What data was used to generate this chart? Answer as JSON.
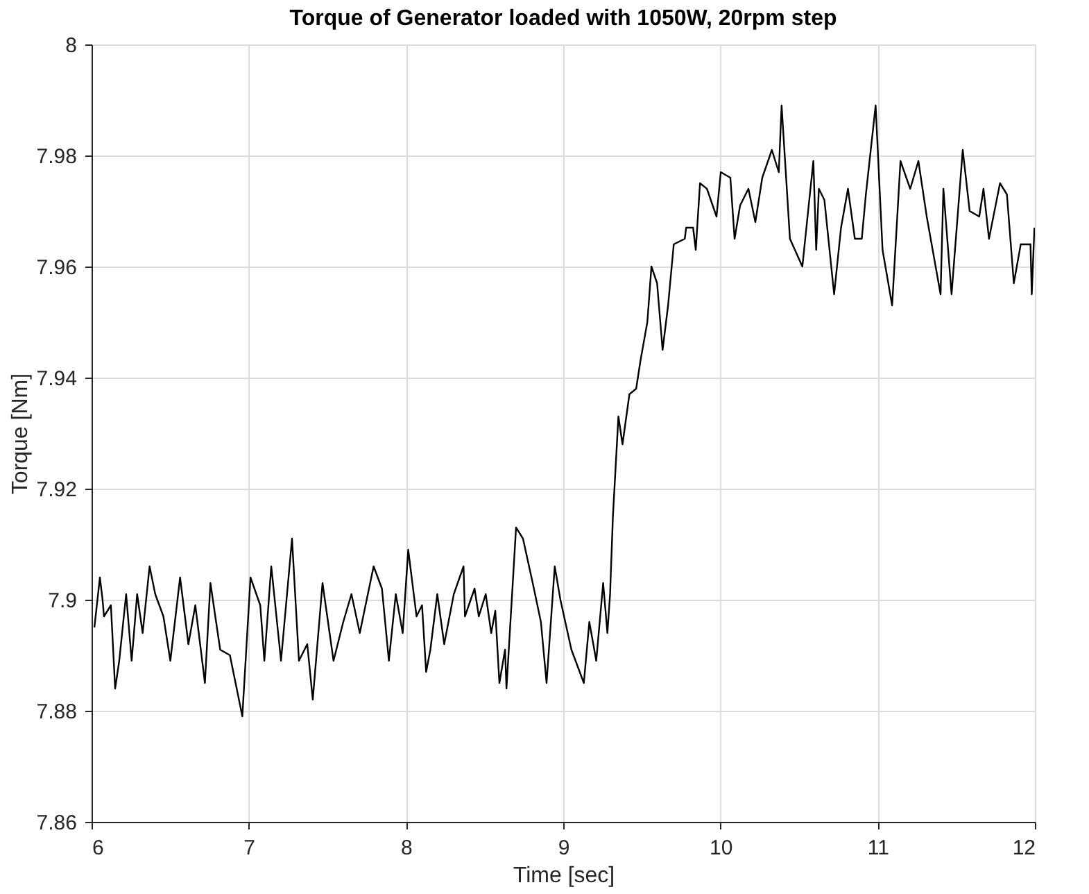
{
  "chart_data": {
    "type": "line",
    "title": "Torque of Generator loaded with 1050W, 20rpm step",
    "xlabel": "Time [sec]",
    "ylabel": "Torque [Nm]",
    "xlim": [
      6,
      12
    ],
    "xticks": [
      6,
      7,
      8,
      9,
      10,
      11,
      12
    ],
    "ylim": [
      7.86,
      8
    ],
    "yticks": [
      7.86,
      7.88,
      7.9,
      7.92,
      7.94,
      7.96,
      7.98,
      8
    ],
    "grid": true,
    "series": [
      {
        "color": "#000000",
        "x": [
          6.018,
          6.053,
          6.07,
          6.079,
          6.123,
          6.15,
          6.176,
          6.22,
          6.255,
          6.29,
          6.325,
          6.369,
          6.405,
          6.457,
          6.501,
          6.563,
          6.616,
          6.66,
          6.721,
          6.756,
          6.818,
          6.88,
          6.959,
          7.011,
          7.073,
          7.099,
          7.143,
          7.205,
          7.275,
          7.319,
          7.372,
          7.407,
          7.469,
          7.539,
          7.601,
          7.653,
          7.706,
          7.794,
          7.847,
          7.891,
          7.935,
          7.979,
          8.014,
          8.067,
          8.102,
          8.128,
          8.155,
          8.199,
          8.243,
          8.304,
          8.366,
          8.375,
          8.436,
          8.463,
          8.507,
          8.542,
          8.568,
          8.594,
          8.63,
          8.639,
          8.7,
          8.744,
          8.806,
          8.858,
          8.894,
          8.946,
          8.982,
          9.052,
          9.131,
          9.166,
          9.21,
          9.254,
          9.281,
          9.298,
          9.316,
          9.351,
          9.377,
          9.421,
          9.464,
          9.491,
          9.535,
          9.561,
          9.597,
          9.632,
          9.667,
          9.703,
          9.773,
          9.782,
          9.826,
          9.843,
          9.87,
          9.914,
          9.975,
          10.002,
          10.063,
          10.09,
          10.125,
          10.178,
          10.222,
          10.266,
          10.327,
          10.371,
          10.389,
          10.442,
          10.521,
          10.565,
          10.591,
          10.609,
          10.626,
          10.661,
          10.723,
          10.767,
          10.811,
          10.855,
          10.899,
          10.925,
          10.987,
          11.031,
          11.092,
          11.145,
          11.207,
          11.259,
          11.312,
          11.356,
          11.4,
          11.418,
          11.47,
          11.541,
          11.585,
          11.646,
          11.673,
          11.708,
          11.778,
          11.822,
          11.866,
          11.91,
          11.972,
          11.98,
          11.997
        ],
        "values": [
          7.895,
          7.904,
          7.9,
          7.897,
          7.899,
          7.884,
          7.889,
          7.901,
          7.889,
          7.901,
          7.894,
          7.906,
          7.901,
          7.897,
          7.889,
          7.904,
          7.892,
          7.899,
          7.885,
          7.903,
          7.891,
          7.89,
          7.879,
          7.904,
          7.899,
          7.889,
          7.906,
          7.889,
          7.911,
          7.889,
          7.892,
          7.882,
          7.903,
          7.889,
          7.896,
          7.901,
          7.894,
          7.906,
          7.902,
          7.889,
          7.901,
          7.894,
          7.909,
          7.897,
          7.899,
          7.887,
          7.891,
          7.901,
          7.892,
          7.901,
          7.906,
          7.897,
          7.902,
          7.897,
          7.901,
          7.894,
          7.898,
          7.885,
          7.891,
          7.884,
          7.913,
          7.911,
          7.903,
          7.896,
          7.885,
          7.906,
          7.9,
          7.891,
          7.885,
          7.896,
          7.889,
          7.903,
          7.894,
          7.901,
          7.915,
          7.933,
          7.928,
          7.937,
          7.938,
          7.943,
          7.95,
          7.96,
          7.957,
          7.945,
          7.953,
          7.964,
          7.965,
          7.967,
          7.967,
          7.963,
          7.975,
          7.974,
          7.969,
          7.977,
          7.976,
          7.965,
          7.971,
          7.974,
          7.968,
          7.976,
          7.981,
          7.977,
          7.989,
          7.965,
          7.96,
          7.972,
          7.979,
          7.963,
          7.974,
          7.972,
          7.955,
          7.967,
          7.974,
          7.965,
          7.965,
          7.973,
          7.989,
          7.963,
          7.953,
          7.979,
          7.974,
          7.979,
          7.969,
          7.962,
          7.955,
          7.974,
          7.955,
          7.981,
          7.97,
          7.969,
          7.974,
          7.965,
          7.975,
          7.973,
          7.957,
          7.964,
          7.964,
          7.955,
          7.967
        ]
      }
    ]
  }
}
